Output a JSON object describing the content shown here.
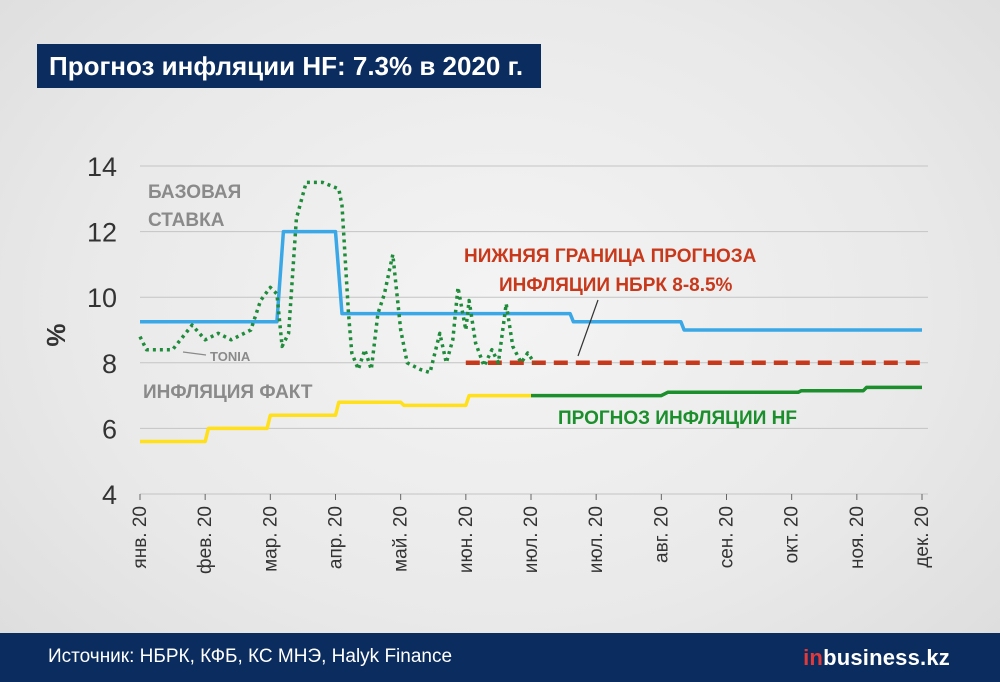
{
  "title": "Прогноз инфляции HF: 7.3% в 2020 г.",
  "footer": {
    "source": "Источник: НБРК, КФБ, КС МНЭ, Halyk Finance",
    "brand_prefix": "in",
    "brand_rest": "business.kz"
  },
  "colors": {
    "base_rate": "#3aa7e6",
    "tonia": "#1e8c3a",
    "inflation_fact": "#ffe01a",
    "hf_forecast": "#1a8f2c",
    "nbrk_lower": "#c8391c",
    "grid": "#c4c4c4",
    "label_gray": "#8a8a8a"
  },
  "chart_data": {
    "type": "line",
    "ylabel": "%",
    "ylim": [
      4,
      14
    ],
    "yticks": [
      4,
      6,
      8,
      10,
      12,
      14
    ],
    "xlim": [
      0,
      12
    ],
    "months": [
      "янв. 20",
      "фев. 20",
      "мар. 20",
      "апр. 20",
      "май. 20",
      "июн. 20",
      "июл. 20",
      "июл. 20",
      "авг. 20",
      "сен. 20",
      "окт. 20",
      "ноя. 20",
      "дек. 20"
    ],
    "grid": "horizontal",
    "annotations": {
      "base_rate": [
        "БАЗОВАЯ",
        "СТАВКА"
      ],
      "tonia": "TONIA",
      "inflation_fact": "ИНФЛЯЦИЯ ФАКТ",
      "nbrk_lower": [
        "НИЖНЯЯ ГРАНИЦА ПРОГНОЗА",
        "ИНФЛЯЦИИ НБРК 8-8.5%"
      ],
      "hf_forecast": "ПРОГНОЗ ИНФЛЯЦИИ HF"
    },
    "series": [
      {
        "key": "base_rate",
        "style": "solid",
        "points": [
          [
            0,
            9.25
          ],
          [
            2.1,
            9.25
          ],
          [
            2.2,
            12
          ],
          [
            3.0,
            12
          ],
          [
            3.1,
            9.5
          ],
          [
            6.6,
            9.5
          ],
          [
            6.65,
            9.25
          ],
          [
            8.3,
            9.25
          ],
          [
            8.35,
            9.0
          ],
          [
            12,
            9.0
          ]
        ]
      },
      {
        "key": "tonia",
        "style": "dotted",
        "points": [
          [
            0,
            8.8
          ],
          [
            0.1,
            8.4
          ],
          [
            0.5,
            8.4
          ],
          [
            0.8,
            9.15
          ],
          [
            1.0,
            8.7
          ],
          [
            1.2,
            8.9
          ],
          [
            1.4,
            8.7
          ],
          [
            1.7,
            9.0
          ],
          [
            1.85,
            9.9
          ],
          [
            2.0,
            10.3
          ],
          [
            2.1,
            10.1
          ],
          [
            2.18,
            8.5
          ],
          [
            2.28,
            8.9
          ],
          [
            2.4,
            12.4
          ],
          [
            2.55,
            13.5
          ],
          [
            2.8,
            13.5
          ],
          [
            3.05,
            13.3
          ],
          [
            3.1,
            12.8
          ],
          [
            3.2,
            9.5
          ],
          [
            3.25,
            8.3
          ],
          [
            3.35,
            7.8
          ],
          [
            3.45,
            8.4
          ],
          [
            3.55,
            7.8
          ],
          [
            3.65,
            9.5
          ],
          [
            3.75,
            10.1
          ],
          [
            3.88,
            11.3
          ],
          [
            4.0,
            9.0
          ],
          [
            4.1,
            8.0
          ],
          [
            4.3,
            7.8
          ],
          [
            4.45,
            7.7
          ],
          [
            4.6,
            8.9
          ],
          [
            4.7,
            8.0
          ],
          [
            4.8,
            8.7
          ],
          [
            4.88,
            10.3
          ],
          [
            5.0,
            9.0
          ],
          [
            5.05,
            9.9
          ],
          [
            5.15,
            8.6
          ],
          [
            5.28,
            7.9
          ],
          [
            5.4,
            8.4
          ],
          [
            5.5,
            8.0
          ],
          [
            5.62,
            9.8
          ],
          [
            5.72,
            8.5
          ],
          [
            5.85,
            8.0
          ],
          [
            5.95,
            8.3
          ],
          [
            6.05,
            8.0
          ]
        ]
      },
      {
        "key": "inflation_fact",
        "style": "solid",
        "points": [
          [
            0,
            5.6
          ],
          [
            1.0,
            5.6
          ],
          [
            1.05,
            6.0
          ],
          [
            1.95,
            6.0
          ],
          [
            2.0,
            6.4
          ],
          [
            3.0,
            6.4
          ],
          [
            3.05,
            6.8
          ],
          [
            4.0,
            6.8
          ],
          [
            4.05,
            6.7
          ],
          [
            5.0,
            6.7
          ],
          [
            5.05,
            7.0
          ],
          [
            6.0,
            7.0
          ]
        ]
      },
      {
        "key": "hf_forecast",
        "style": "solid",
        "points": [
          [
            6.0,
            7.0
          ],
          [
            8.0,
            7.0
          ],
          [
            8.1,
            7.1
          ],
          [
            9.5,
            7.1
          ],
          [
            10.1,
            7.1
          ],
          [
            10.15,
            7.15
          ],
          [
            11.1,
            7.15
          ],
          [
            11.15,
            7.25
          ],
          [
            12,
            7.25
          ]
        ]
      },
      {
        "key": "nbrk_lower",
        "style": "dashed",
        "points": [
          [
            5.0,
            8.0
          ],
          [
            12,
            8.0
          ]
        ]
      }
    ]
  }
}
